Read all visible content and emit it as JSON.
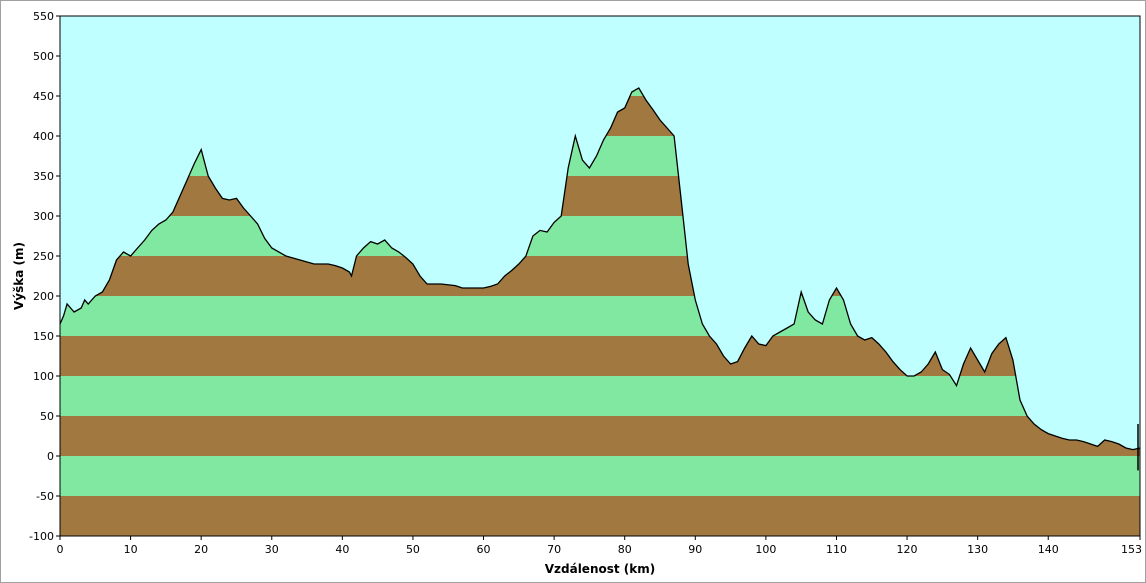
{
  "chart_data": {
    "type": "area",
    "title": "",
    "xlabel": "Vzdálenost  (km)",
    "ylabel": "Výška (m)",
    "xlim": [
      0,
      153
    ],
    "ylim": [
      -100,
      550
    ],
    "x_ticks": [
      0,
      10,
      20,
      30,
      40,
      50,
      60,
      70,
      80,
      90,
      100,
      110,
      120,
      130,
      140,
      153
    ],
    "y_ticks": [
      550,
      500,
      450,
      400,
      350,
      300,
      250,
      200,
      150,
      100,
      50,
      0,
      -50,
      -100
    ],
    "band_step": 50,
    "colors": {
      "sky": "#c0ffff",
      "band_green": "#80e8a0",
      "band_brown": "#a07840",
      "profile_line": "#000000"
    },
    "grid": false,
    "series": [
      {
        "x": [
          0,
          0.5,
          1,
          1.5,
          2,
          3,
          3.5,
          4,
          5,
          6,
          7,
          8,
          9,
          10,
          11,
          12,
          13,
          14,
          15,
          16,
          17,
          18,
          19,
          20,
          21,
          22,
          23,
          24,
          25,
          26,
          27,
          28,
          29,
          30,
          32,
          34,
          36,
          38,
          39,
          40,
          41,
          41.3,
          42,
          43,
          44,
          45,
          46,
          47,
          48,
          49,
          50,
          51,
          52,
          54,
          56,
          57,
          58,
          60,
          61,
          62,
          63,
          64,
          65,
          66,
          67,
          68,
          69,
          70,
          71,
          72,
          73,
          74,
          75,
          76,
          77,
          78,
          79,
          80,
          81,
          82,
          83,
          84,
          85,
          86,
          87,
          88,
          89,
          90,
          91,
          92,
          93,
          94,
          95,
          96,
          97,
          98,
          99,
          100,
          101,
          102,
          103,
          104,
          105,
          106,
          107,
          108,
          109,
          110,
          111,
          112,
          113,
          114,
          115,
          116,
          117,
          118,
          119,
          120,
          121,
          122,
          123,
          124,
          125,
          126,
          127,
          128,
          129,
          130,
          131,
          132,
          133,
          134,
          135,
          136,
          137,
          138,
          139,
          140,
          141,
          142,
          143,
          144,
          145,
          146,
          147,
          148,
          149,
          150,
          151,
          152,
          153
        ],
        "y": [
          165,
          175,
          190,
          185,
          180,
          185,
          195,
          190,
          200,
          205,
          220,
          245,
          255,
          250,
          260,
          270,
          282,
          290,
          295,
          305,
          325,
          345,
          365,
          383,
          350,
          335,
          322,
          320,
          322,
          310,
          300,
          290,
          272,
          260,
          250,
          245,
          240,
          240,
          238,
          235,
          230,
          225,
          250,
          260,
          268,
          265,
          270,
          260,
          255,
          248,
          240,
          225,
          215,
          215,
          213,
          210,
          210,
          210,
          212,
          215,
          225,
          232,
          240,
          250,
          275,
          282,
          280,
          292,
          300,
          360,
          400,
          370,
          360,
          375,
          395,
          410,
          430,
          435,
          455,
          460,
          445,
          433,
          420,
          410,
          400,
          320,
          240,
          195,
          165,
          150,
          140,
          125,
          115,
          118,
          135,
          150,
          140,
          138,
          150,
          155,
          160,
          165,
          205,
          180,
          170,
          165,
          195,
          210,
          195,
          165,
          150,
          145,
          148,
          140,
          130,
          118,
          108,
          100,
          100,
          105,
          115,
          130,
          108,
          102,
          88,
          115,
          135,
          120,
          105,
          128,
          140,
          148,
          120,
          70,
          50,
          40,
          33,
          28,
          25,
          22,
          20,
          20,
          18,
          15,
          12,
          20,
          18,
          15,
          10,
          8,
          10
        ]
      }
    ]
  }
}
